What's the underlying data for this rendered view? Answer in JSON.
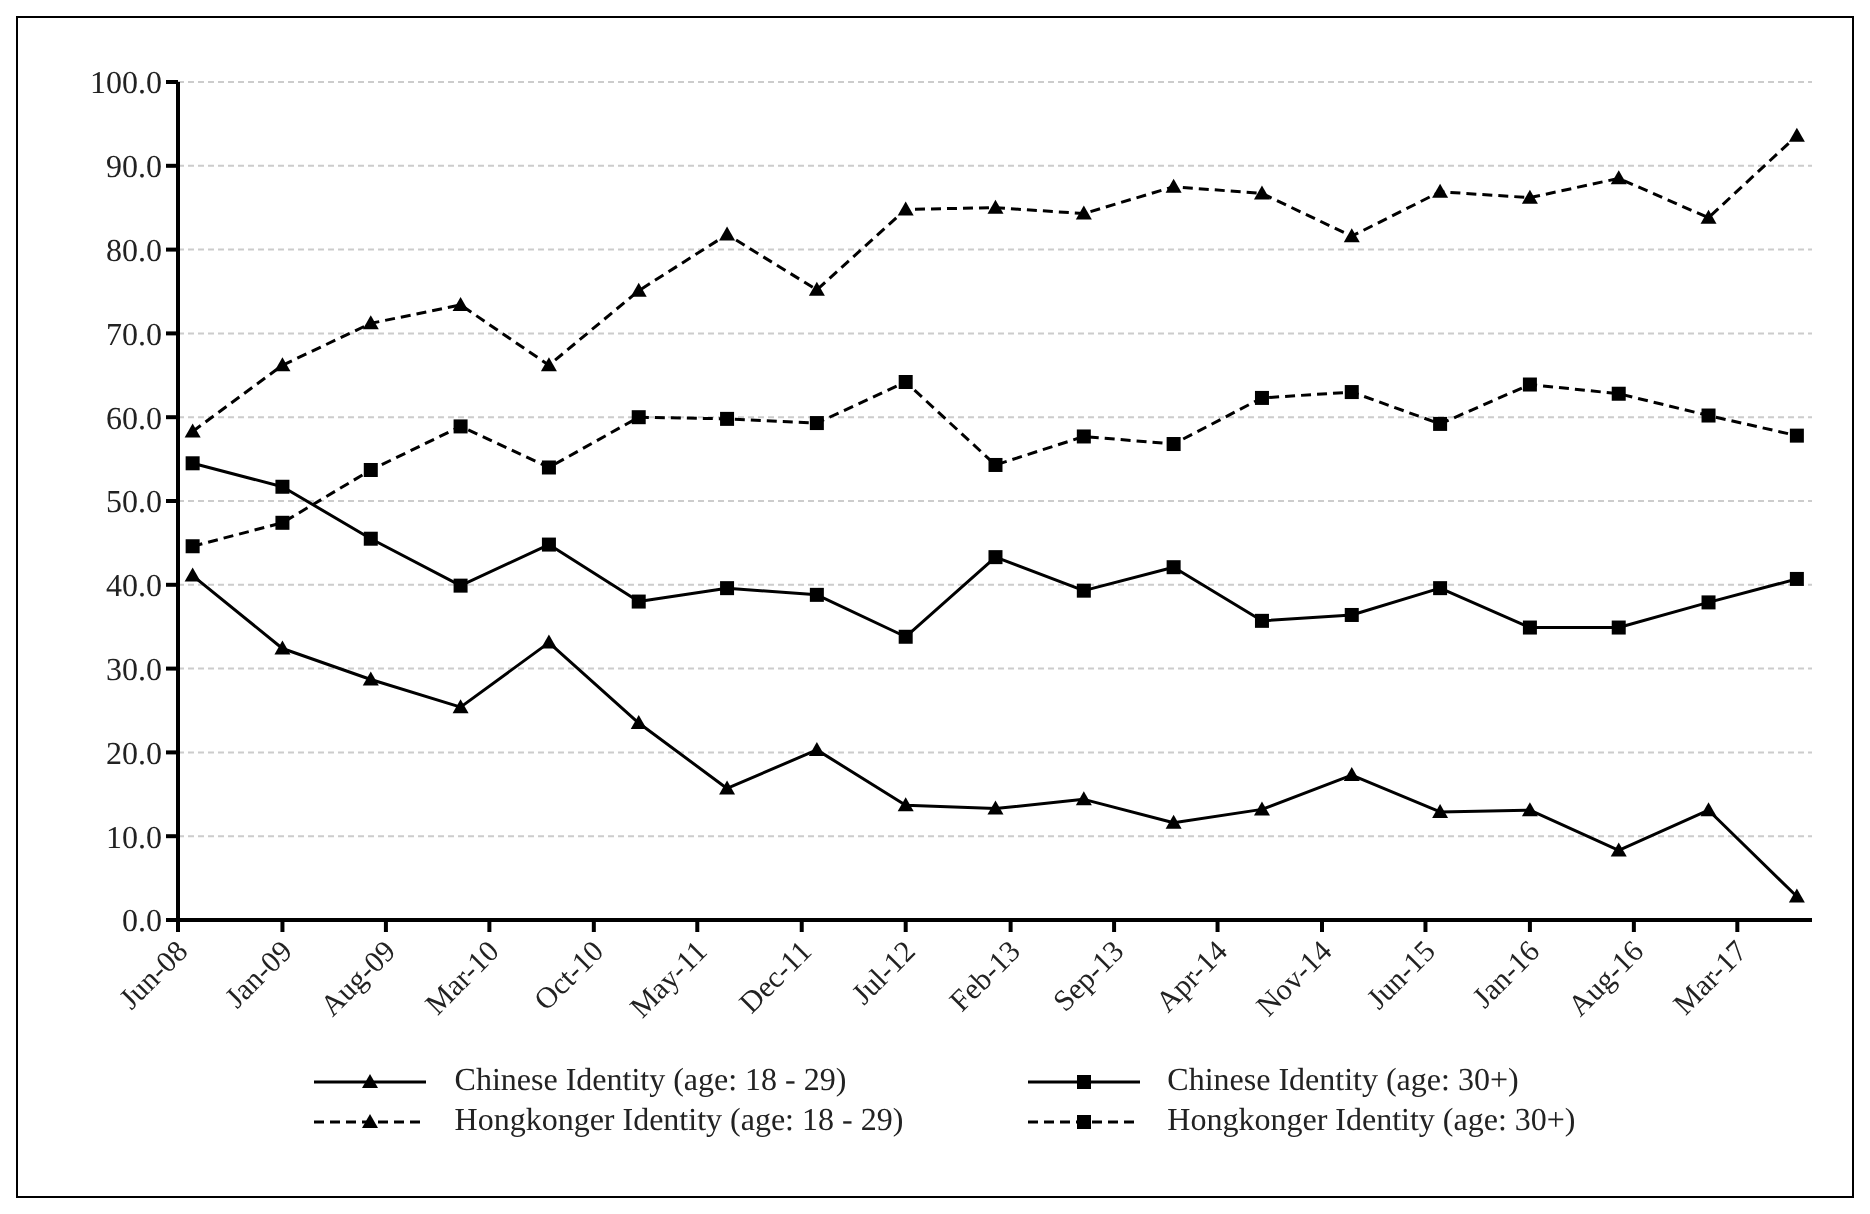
{
  "chart_data": {
    "type": "line",
    "x": [
      "2008-07",
      "2009-01",
      "2009-07",
      "2010-01",
      "2010-07",
      "2011-01",
      "2011-07",
      "2012-01",
      "2012-07",
      "2013-01",
      "2013-07",
      "2014-01",
      "2014-07",
      "2015-01",
      "2015-07",
      "2016-01",
      "2016-07",
      "2017-01",
      "2017-07"
    ],
    "series": [
      {
        "name": "Chinese Identity (age: 18 - 29)",
        "color": "#000000",
        "marker": "triangle",
        "line_style": "solid",
        "values": [
          41.1,
          32.4,
          28.7,
          25.4,
          33.1,
          23.5,
          15.7,
          20.3,
          13.7,
          13.3,
          14.4,
          11.6,
          13.2,
          17.3,
          12.9,
          13.1,
          8.3,
          13.1,
          2.8
        ]
      },
      {
        "name": "Chinese Identity (age: 30+)",
        "color": "#000000",
        "marker": "square",
        "line_style": "solid",
        "values": [
          54.5,
          51.7,
          45.5,
          39.9,
          44.8,
          38.0,
          39.6,
          38.8,
          33.8,
          43.3,
          39.3,
          42.1,
          35.7,
          36.4,
          39.6,
          34.9,
          34.9,
          37.9,
          40.7
        ]
      },
      {
        "name": "Hongkonger Identity (age: 18 - 29)",
        "color": "#000000",
        "marker": "triangle",
        "line_style": "dashed",
        "values": [
          58.3,
          66.2,
          71.2,
          73.4,
          66.2,
          75.1,
          81.8,
          75.2,
          84.8,
          85.0,
          84.3,
          87.5,
          86.7,
          81.6,
          86.9,
          86.2,
          88.5,
          83.8,
          93.6
        ]
      },
      {
        "name": "Hongkonger Identity (age: 30+)",
        "color": "#000000",
        "marker": "square",
        "line_style": "dashed",
        "values": [
          44.6,
          47.4,
          53.7,
          58.9,
          54.0,
          60.0,
          59.8,
          59.3,
          64.2,
          54.3,
          57.7,
          56.8,
          62.3,
          63.0,
          59.2,
          63.9,
          62.8,
          60.2,
          57.8
        ]
      }
    ],
    "xlim": [
      "2008-06",
      "2017-08"
    ],
    "xticks": [
      {
        "value": "2008-06",
        "label": "Jun-08"
      },
      {
        "value": "2009-01",
        "label": "Jan-09"
      },
      {
        "value": "2009-08",
        "label": "Aug-09"
      },
      {
        "value": "2010-03",
        "label": "Mar-10"
      },
      {
        "value": "2010-10",
        "label": "Oct-10"
      },
      {
        "value": "2011-05",
        "label": "May-11"
      },
      {
        "value": "2011-12",
        "label": "Dec-11"
      },
      {
        "value": "2012-07",
        "label": "Jul-12"
      },
      {
        "value": "2013-02",
        "label": "Feb-13"
      },
      {
        "value": "2013-09",
        "label": "Sep-13"
      },
      {
        "value": "2014-04",
        "label": "Apr-14"
      },
      {
        "value": "2014-11",
        "label": "Nov-14"
      },
      {
        "value": "2015-06",
        "label": "Jun-15"
      },
      {
        "value": "2016-01",
        "label": "Jan-16"
      },
      {
        "value": "2016-08",
        "label": "Aug-16"
      },
      {
        "value": "2017-03",
        "label": "Mar-17"
      }
    ],
    "ylim": [
      0,
      100
    ],
    "yticks": [
      {
        "value": 0,
        "label": "0.0"
      },
      {
        "value": 10,
        "label": "10.0"
      },
      {
        "value": 20,
        "label": "20.0"
      },
      {
        "value": 30,
        "label": "30.0"
      },
      {
        "value": 40,
        "label": "40.0"
      },
      {
        "value": 50,
        "label": "50.0"
      },
      {
        "value": 60,
        "label": "60.0"
      },
      {
        "value": 70,
        "label": "70.0"
      },
      {
        "value": 80,
        "label": "80.0"
      },
      {
        "value": 90,
        "label": "90.0"
      },
      {
        "value": 100,
        "label": "100.0"
      }
    ],
    "grid": "y",
    "legend": "bottom"
  }
}
